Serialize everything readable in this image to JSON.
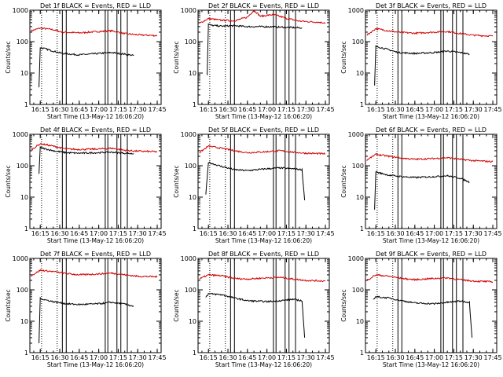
{
  "chart_data": [
    {
      "type": "line",
      "title": "Det 1f BLACK = Events, RED = LLD",
      "xlabel": "Start Time (13-May-12 16:06:20)",
      "ylabel": "Counts/sec",
      "yscale": "log",
      "ylim": [
        1,
        1000
      ],
      "xlim": [
        "16:07",
        "17:48"
      ],
      "x_ticks": [
        "16:15",
        "16:30",
        "16:45",
        "17:00",
        "17:15",
        "17:30",
        "17:45"
      ],
      "y_ticks": [
        "1",
        "10",
        "100",
        "1000"
      ],
      "dotted_lines": [
        "16:16",
        "16:28"
      ],
      "vertical_lines": [
        "16:32",
        "16:35",
        "17:05",
        "17:07",
        "17:14",
        "17:17",
        "17:22"
      ],
      "series": [
        {
          "color": "#d00000",
          "x": [
            "16:08",
            "16:15",
            "16:25",
            "16:32",
            "16:45",
            "17:00",
            "17:10",
            "17:20",
            "17:30",
            "17:45"
          ],
          "y": [
            220,
            270,
            240,
            200,
            190,
            210,
            220,
            180,
            165,
            155
          ]
        },
        {
          "color": "#000000",
          "x": [
            "16:14",
            "16:15",
            "16:17",
            "16:25",
            "16:32",
            "16:45",
            "17:00",
            "17:10",
            "17:20",
            "17:27"
          ],
          "y": [
            3.5,
            65,
            62,
            50,
            42,
            38,
            42,
            45,
            40,
            36
          ]
        }
      ]
    },
    {
      "type": "line",
      "title": "Det 2f BLACK = Events, RED = LLD",
      "xlabel": "Start Time (13-May-12 16:06:20)",
      "ylabel": "Counts/sec",
      "yscale": "log",
      "ylim": [
        1,
        1000
      ],
      "xlim": [
        "16:07",
        "17:48"
      ],
      "x_ticks": [
        "16:15",
        "16:30",
        "16:45",
        "17:00",
        "17:15",
        "17:30",
        "17:45"
      ],
      "y_ticks": [
        "1",
        "10",
        "100",
        "1000"
      ],
      "dotted_lines": [
        "16:16",
        "16:28"
      ],
      "vertical_lines": [
        "16:32",
        "16:35",
        "17:05",
        "17:07",
        "17:14",
        "17:17",
        "17:22"
      ],
      "series": [
        {
          "color": "#d00000",
          "x": [
            "16:08",
            "16:15",
            "16:25",
            "16:35",
            "16:45",
            "16:50",
            "16:55",
            "17:05",
            "17:15",
            "17:25",
            "17:45"
          ],
          "y": [
            380,
            540,
            480,
            460,
            600,
            1000,
            640,
            730,
            550,
            450,
            400
          ]
        },
        {
          "color": "#000000",
          "x": [
            "16:14",
            "16:15",
            "16:17",
            "16:25",
            "16:35",
            "16:45",
            "17:00",
            "17:10",
            "17:20",
            "17:27"
          ],
          "y": [
            8.5,
            360,
            330,
            310,
            320,
            300,
            300,
            290,
            280,
            275
          ]
        }
      ]
    },
    {
      "type": "line",
      "title": "Det 3f BLACK = Events, RED = LLD",
      "xlabel": "Start Time (13-May-12 16:06:20)",
      "ylabel": "Counts/sec",
      "yscale": "log",
      "ylim": [
        1,
        1000
      ],
      "xlim": [
        "16:07",
        "17:48"
      ],
      "x_ticks": [
        "16:15",
        "16:30",
        "16:45",
        "17:00",
        "17:15",
        "17:30",
        "17:45"
      ],
      "y_ticks": [
        "1",
        "10",
        "100",
        "1000"
      ],
      "dotted_lines": [
        "16:16",
        "16:28"
      ],
      "vertical_lines": [
        "16:32",
        "16:35",
        "17:05",
        "17:07",
        "17:14",
        "17:17",
        "17:22"
      ],
      "series": [
        {
          "color": "#d00000",
          "x": [
            "16:08",
            "16:15",
            "16:25",
            "16:32",
            "16:45",
            "17:00",
            "17:10",
            "17:20",
            "17:30",
            "17:45"
          ],
          "y": [
            160,
            260,
            220,
            200,
            185,
            200,
            210,
            180,
            160,
            150
          ]
        },
        {
          "color": "#000000",
          "x": [
            "16:14",
            "16:15",
            "16:17",
            "16:25",
            "16:32",
            "16:45",
            "17:00",
            "17:10",
            "17:20",
            "17:27"
          ],
          "y": [
            4,
            70,
            68,
            55,
            45,
            42,
            45,
            50,
            45,
            40
          ]
        }
      ]
    },
    {
      "type": "line",
      "title": "Det 4f BLACK = Events, RED = LLD",
      "xlabel": "Start Time (13-May-12 16:06:20)",
      "ylabel": "Counts/sec",
      "yscale": "log",
      "ylim": [
        1,
        1000
      ],
      "xlim": [
        "16:07",
        "17:48"
      ],
      "x_ticks": [
        "16:15",
        "16:30",
        "16:45",
        "17:00",
        "17:15",
        "17:30",
        "17:45"
      ],
      "y_ticks": [
        "1",
        "10",
        "100",
        "1000"
      ],
      "dotted_lines": [
        "16:16",
        "16:28"
      ],
      "vertical_lines": [
        "16:32",
        "16:35",
        "17:05",
        "17:07",
        "17:14",
        "17:17",
        "17:22"
      ],
      "series": [
        {
          "color": "#d00000",
          "x": [
            "16:08",
            "16:15",
            "16:25",
            "16:35",
            "16:45",
            "17:00",
            "17:10",
            "17:20",
            "17:30",
            "17:45"
          ],
          "y": [
            320,
            500,
            420,
            340,
            330,
            340,
            360,
            310,
            290,
            280
          ]
        },
        {
          "color": "#000000",
          "x": [
            "16:14",
            "16:15",
            "16:17",
            "16:25",
            "16:35",
            "16:45",
            "17:00",
            "17:10",
            "17:20",
            "17:27"
          ],
          "y": [
            55,
            380,
            360,
            300,
            260,
            250,
            260,
            270,
            250,
            240
          ]
        }
      ]
    },
    {
      "type": "line",
      "title": "Det 5f BLACK = Events, RED = LLD",
      "xlabel": "Start Time (13-May-12 16:06:20)",
      "ylabel": "Counts/sec",
      "yscale": "log",
      "ylim": [
        1,
        1000
      ],
      "xlim": [
        "16:07",
        "17:48"
      ],
      "x_ticks": [
        "16:15",
        "16:30",
        "16:45",
        "17:00",
        "17:15",
        "17:30",
        "17:45"
      ],
      "y_ticks": [
        "1",
        "10",
        "100",
        "1000"
      ],
      "dotted_lines": [
        "16:16",
        "16:28"
      ],
      "vertical_lines": [
        "16:32",
        "16:35",
        "17:05",
        "17:07",
        "17:14",
        "17:17",
        "17:22"
      ],
      "series": [
        {
          "color": "#d00000",
          "x": [
            "16:08",
            "16:15",
            "16:25",
            "16:35",
            "16:45",
            "17:00",
            "17:10",
            "17:20",
            "17:30",
            "17:45"
          ],
          "y": [
            260,
            420,
            360,
            300,
            260,
            280,
            300,
            270,
            250,
            240
          ]
        },
        {
          "color": "#000000",
          "x": [
            "16:13",
            "16:15",
            "16:17",
            "16:25",
            "16:35",
            "16:45",
            "17:00",
            "17:10",
            "17:20",
            "17:27",
            "17:29"
          ],
          "y": [
            12,
            130,
            120,
            95,
            75,
            70,
            80,
            85,
            80,
            75,
            8
          ]
        }
      ]
    },
    {
      "type": "line",
      "title": "Det 6f BLACK = Events, RED = LLD",
      "xlabel": "Start Time (13-May-12 16:06:20)",
      "ylabel": "Counts/sec",
      "yscale": "log",
      "ylim": [
        1,
        1000
      ],
      "xlim": [
        "16:07",
        "17:48"
      ],
      "x_ticks": [
        "16:15",
        "16:30",
        "16:45",
        "17:00",
        "17:15",
        "17:30",
        "17:45"
      ],
      "y_ticks": [
        "1",
        "10",
        "100",
        "1000"
      ],
      "dotted_lines": [
        "16:16",
        "16:28"
      ],
      "vertical_lines": [
        "16:32",
        "16:35",
        "17:05",
        "17:07",
        "17:14",
        "17:17",
        "17:22"
      ],
      "series": [
        {
          "color": "#d00000",
          "x": [
            "16:08",
            "16:15",
            "16:25",
            "16:35",
            "16:45",
            "17:00",
            "17:10",
            "17:20",
            "17:30",
            "17:45"
          ],
          "y": [
            150,
            230,
            200,
            175,
            160,
            170,
            180,
            160,
            145,
            135
          ]
        },
        {
          "color": "#000000",
          "x": [
            "16:14",
            "16:15",
            "16:17",
            "16:25",
            "16:35",
            "16:45",
            "17:00",
            "17:10",
            "17:20",
            "17:27"
          ],
          "y": [
            4,
            65,
            60,
            50,
            45,
            42,
            45,
            48,
            40,
            30
          ]
        }
      ]
    },
    {
      "type": "line",
      "title": "Det 7f BLACK = Events, RED = LLD",
      "xlabel": "Start Time (13-May-12 16:06:20)",
      "ylabel": "Counts/sec",
      "yscale": "log",
      "ylim": [
        1,
        1000
      ],
      "xlim": [
        "16:07",
        "17:48"
      ],
      "x_ticks": [
        "16:15",
        "16:30",
        "16:45",
        "17:00",
        "17:15",
        "17:30",
        "17:45"
      ],
      "y_ticks": [
        "1",
        "10",
        "100",
        "1000"
      ],
      "dotted_lines": [
        "16:16",
        "16:28"
      ],
      "vertical_lines": [
        "16:32",
        "16:35",
        "17:05",
        "17:07",
        "17:14",
        "17:17",
        "17:22"
      ],
      "series": [
        {
          "color": "#d00000",
          "x": [
            "16:08",
            "16:15",
            "16:25",
            "16:35",
            "16:45",
            "17:00",
            "17:10",
            "17:20",
            "17:30",
            "17:45"
          ],
          "y": [
            280,
            420,
            380,
            330,
            300,
            320,
            340,
            300,
            270,
            260
          ]
        },
        {
          "color": "#000000",
          "x": [
            "16:14",
            "16:15",
            "16:17",
            "16:25",
            "16:35",
            "16:45",
            "17:00",
            "17:10",
            "17:20",
            "17:27"
          ],
          "y": [
            2,
            55,
            50,
            42,
            36,
            34,
            36,
            40,
            35,
            30
          ]
        }
      ]
    },
    {
      "type": "line",
      "title": "Det 8f BLACK = Events, RED = LLD",
      "xlabel": "Start Time (13-May-12 16:06:20)",
      "ylabel": "Counts/sec",
      "yscale": "log",
      "ylim": [
        1,
        1000
      ],
      "xlim": [
        "16:07",
        "17:48"
      ],
      "x_ticks": [
        "16:15",
        "16:30",
        "16:45",
        "17:00",
        "17:15",
        "17:30",
        "17:45"
      ],
      "y_ticks": [
        "1",
        "10",
        "100",
        "1000"
      ],
      "dotted_lines": [
        "16:16",
        "16:28"
      ],
      "vertical_lines": [
        "16:32",
        "16:35",
        "17:05",
        "17:07",
        "17:14",
        "17:17",
        "17:22"
      ],
      "series": [
        {
          "color": "#d00000",
          "x": [
            "16:08",
            "16:15",
            "16:25",
            "16:35",
            "16:45",
            "17:00",
            "17:10",
            "17:20",
            "17:30",
            "17:45"
          ],
          "y": [
            220,
            300,
            280,
            230,
            220,
            240,
            250,
            220,
            200,
            190
          ]
        },
        {
          "color": "#000000",
          "x": [
            "16:13",
            "16:15",
            "16:25",
            "16:35",
            "16:45",
            "17:00",
            "17:10",
            "17:20",
            "17:27",
            "17:29"
          ],
          "y": [
            60,
            75,
            70,
            55,
            45,
            42,
            45,
            50,
            45,
            3
          ]
        }
      ]
    },
    {
      "type": "line",
      "title": "Det 9f BLACK = Events, RED = LLD",
      "xlabel": "Start Time (13-May-12 16:06:20)",
      "ylabel": "Counts/sec",
      "yscale": "log",
      "ylim": [
        1,
        1000
      ],
      "xlim": [
        "16:07",
        "17:48"
      ],
      "x_ticks": [
        "16:15",
        "16:30",
        "16:45",
        "17:00",
        "17:15",
        "17:30",
        "17:45"
      ],
      "y_ticks": [
        "1",
        "10",
        "100",
        "1000"
      ],
      "dotted_lines": [
        "16:16",
        "16:28"
      ],
      "vertical_lines": [
        "16:32",
        "16:35",
        "17:05",
        "17:07",
        "17:14",
        "17:17",
        "17:22"
      ],
      "series": [
        {
          "color": "#d00000",
          "x": [
            "16:08",
            "16:15",
            "16:25",
            "16:35",
            "16:45",
            "17:00",
            "17:10",
            "17:20",
            "17:30",
            "17:45"
          ],
          "y": [
            200,
            300,
            270,
            230,
            210,
            230,
            240,
            210,
            190,
            180
          ]
        },
        {
          "color": "#000000",
          "x": [
            "16:13",
            "16:15",
            "16:25",
            "16:35",
            "16:45",
            "17:00",
            "17:10",
            "17:20",
            "17:27",
            "17:29"
          ],
          "y": [
            50,
            60,
            55,
            45,
            38,
            36,
            40,
            44,
            40,
            3
          ]
        }
      ]
    }
  ]
}
